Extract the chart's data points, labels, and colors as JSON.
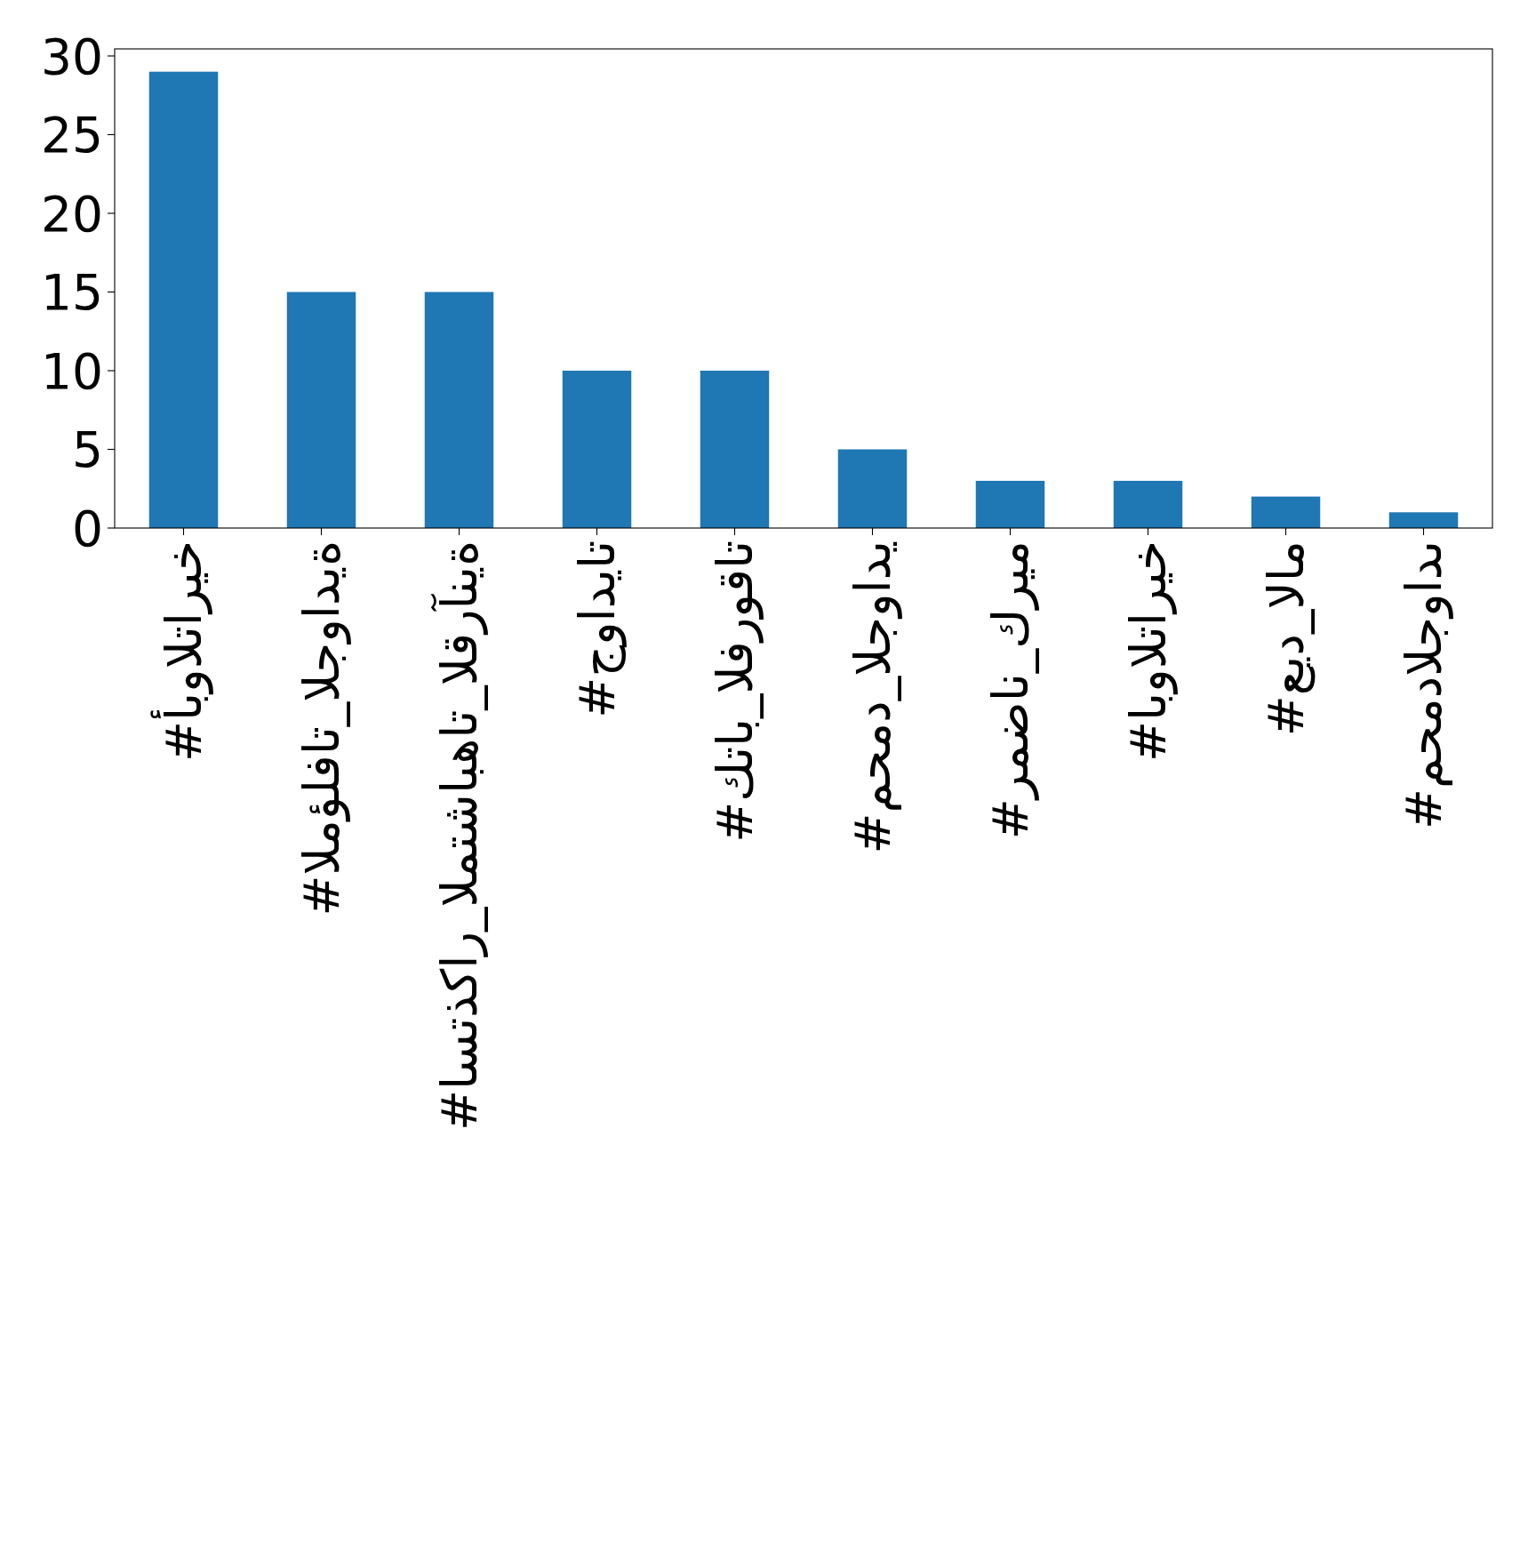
{
  "chart_data": {
    "type": "bar",
    "categories": [
      "#أبوالتاريخ",
      "#المؤلفات_الجوادية",
      "#استذكار_المتشابهات_القرآنية",
      "#جواديات",
      "#كتاب_الفروقات",
      "#محمد_الجوادي",
      "#رمضان_كريم",
      "#ابوالتاريخ",
      "#عيد_الام",
      "#محمدالجوادى"
    ],
    "values": [
      29,
      15,
      15,
      10,
      10,
      5,
      3,
      3,
      2,
      1
    ],
    "color": "#1f77b4",
    "ylim": [
      0,
      30.45
    ],
    "yticks": [
      0,
      5,
      10,
      15,
      20,
      25,
      30
    ],
    "grid": false
  }
}
